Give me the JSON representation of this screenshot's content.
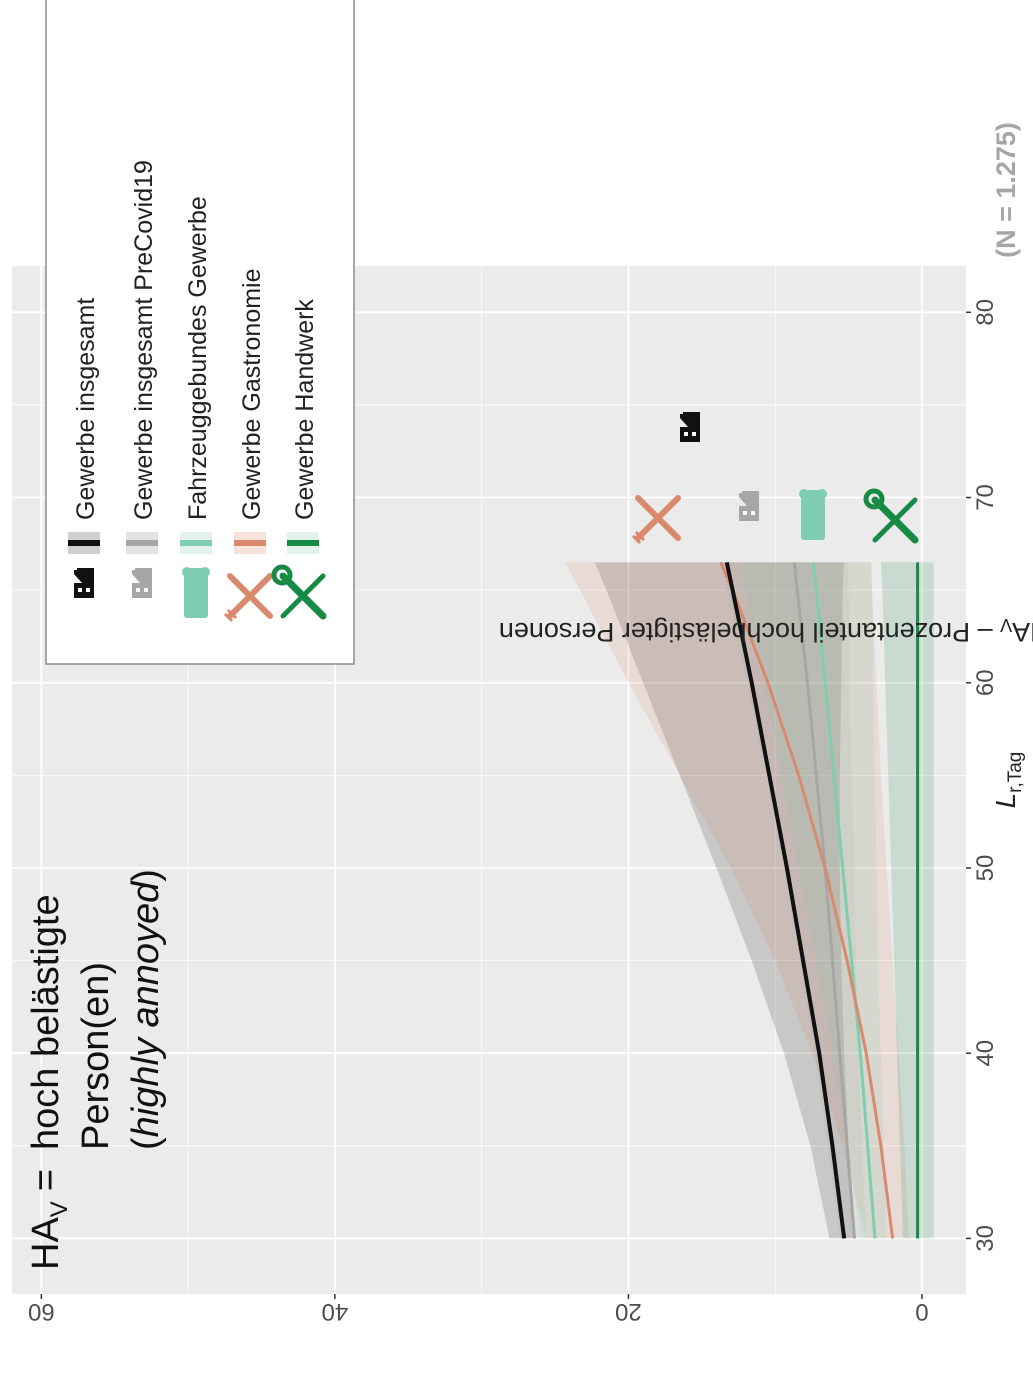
{
  "note": {
    "lhs": "HA",
    "lhs_sub": "V",
    "eq": "=",
    "line1": "hoch belästigte",
    "line2": "Person(en)",
    "line3_open": "(",
    "line3_italic": "highly annoyed",
    "line3_close": ")"
  },
  "sample_size": "(N = 1.275)",
  "legend": {
    "items": [
      {
        "label": "Gewerbe insgesamt",
        "color": "#111111",
        "icon": "factory-icon"
      },
      {
        "label": "Gewerbe insgesamt PreCovid19",
        "color": "#a6a6a6",
        "icon": "factory-icon"
      },
      {
        "label": "Fahrzeuggebundes Gewerbe",
        "color": "#7fcdb0",
        "icon": "van-icon"
      },
      {
        "label": "Gewerbe Gastronomie",
        "color": "#d98a6c",
        "icon": "cutlery-icon"
      },
      {
        "label": "Gewerbe Handwerk",
        "color": "#178a45",
        "icon": "tools-icon"
      }
    ]
  },
  "chart_data": {
    "type": "line",
    "xlabel_main": "L",
    "xlabel_sub": "r,Tag",
    "ylabel": "% HA",
    "ylabel_sub": "V",
    "ylabel_rest": " – Prozentanteil hochbelästigter Personen",
    "xlim": [
      27,
      82.5
    ],
    "ylim": [
      -3,
      62
    ],
    "xticks": [
      30,
      40,
      50,
      60,
      70,
      80
    ],
    "yticks": [
      0,
      20,
      40,
      60
    ],
    "grid": true,
    "rotation": "chart rotated 90° clockwise",
    "legend_position": "top-right",
    "series": [
      {
        "name": "Gewerbe insgesamt",
        "color": "#111111",
        "width": 4,
        "x": [
          30,
          35,
          40,
          45,
          50,
          55,
          60,
          65,
          66.5
        ],
        "y": [
          5.3,
          6.1,
          7.0,
          8.1,
          9.2,
          10.4,
          11.6,
          12.9,
          13.3
        ],
        "lower": [
          4.5,
          5.0,
          5.3,
          5.5,
          5.6,
          5.6,
          5.5,
          5.4,
          5.3
        ],
        "upper": [
          6.3,
          7.6,
          9.4,
          11.6,
          14.0,
          16.5,
          19.0,
          21.5,
          22.3
        ]
      },
      {
        "name": "Gewerbe insgesamt PreCovid19",
        "color": "#a6a6a6",
        "width": 3,
        "x": [
          30,
          35,
          40,
          45,
          50,
          55,
          60,
          65,
          66.5
        ],
        "y": [
          4.6,
          5.1,
          5.6,
          6.1,
          6.6,
          7.2,
          7.8,
          8.5,
          8.7
        ],
        "lower": [
          3.8,
          4.1,
          4.3,
          4.5,
          4.6,
          4.8,
          4.9,
          5.0,
          5.0
        ],
        "upper": [
          5.6,
          6.4,
          7.3,
          8.3,
          9.4,
          10.6,
          11.9,
          13.3,
          13.7
        ]
      },
      {
        "name": "Fahrzeuggebundes Gewerbe",
        "color": "#7fcdb0",
        "width": 3,
        "x": [
          30,
          35,
          40,
          45,
          50,
          55,
          60,
          65,
          66.5
        ],
        "y": [
          3.2,
          3.7,
          4.2,
          4.8,
          5.4,
          6.0,
          6.6,
          7.2,
          7.4
        ],
        "lower": [
          2.4,
          2.6,
          2.8,
          3.0,
          3.1,
          3.2,
          3.3,
          3.4,
          3.4
        ],
        "upper": [
          4.2,
          5.1,
          6.1,
          7.2,
          8.4,
          9.6,
          10.8,
          12.0,
          12.4
        ]
      },
      {
        "name": "Gewerbe Gastronomie",
        "color": "#d98a6c",
        "width": 3,
        "x": [
          30,
          35,
          40,
          45,
          50,
          55,
          60,
          65,
          66.5
        ],
        "y": [
          2.0,
          2.8,
          3.8,
          5.1,
          6.6,
          8.4,
          10.5,
          12.9,
          13.7
        ],
        "lower": [
          0.9,
          1.2,
          1.6,
          2.0,
          2.4,
          2.8,
          3.1,
          3.4,
          3.5
        ],
        "upper": [
          3.8,
          5.4,
          7.5,
          10.0,
          13.0,
          16.5,
          20.0,
          23.3,
          24.3
        ]
      },
      {
        "name": "Gewerbe Handwerk",
        "color": "#178a45",
        "width": 3,
        "x": [
          30,
          35,
          40,
          45,
          50,
          55,
          60,
          65,
          66.5
        ],
        "y": [
          0.3,
          0.3,
          0.3,
          0.3,
          0.3,
          0.3,
          0.3,
          0.3,
          0.3
        ],
        "lower": [
          -0.8,
          -0.8,
          -0.8,
          -0.8,
          -0.8,
          -0.8,
          -0.8,
          -0.8,
          -0.8
        ],
        "upper": [
          1.3,
          1.5,
          1.7,
          1.9,
          2.1,
          2.3,
          2.5,
          2.7,
          2.8
        ]
      }
    ]
  }
}
